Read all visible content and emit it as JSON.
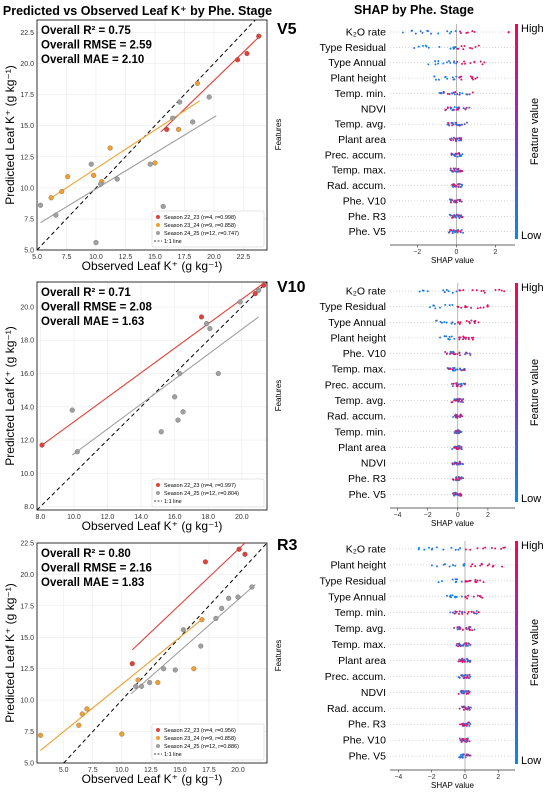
{
  "titles": {
    "left": "Predicted vs Observed Leaf K⁺ by Phe. Stage",
    "right": "SHAP by Phe. Stage"
  },
  "chart_data": [
    {
      "type": "scatter",
      "panel": "V5",
      "xlabel": "Observed Leaf K⁺ (g kg⁻¹)",
      "ylabel": "Predicted Leaf K⁺ (g kg⁻¹)",
      "xlim": [
        5.0,
        24.5
      ],
      "ylim": [
        5.0,
        23.5
      ],
      "xticks": [
        "5.0",
        "7.5",
        "10.0",
        "12.5",
        "15.0",
        "17.5",
        "20.0",
        "22.5"
      ],
      "xtick_values": [
        5,
        7.5,
        10,
        12.5,
        15,
        17.5,
        20,
        22.5
      ],
      "yticks": [
        "5.0",
        "7.5",
        "10.0",
        "12.5",
        "15.0",
        "17.5",
        "20.0",
        "22.5"
      ],
      "ytick_values": [
        5,
        7.5,
        10,
        12.5,
        15,
        17.5,
        20,
        22.5
      ],
      "stats": [
        "Overall R² = 0.75",
        "Overall RMSE = 2.59",
        "Overall MAE = 2.10"
      ],
      "series": [
        {
          "name": "Season 22_23 (n=4, r=0.998)",
          "color": "#e0413a",
          "x": [
            16.0,
            22.0,
            22.8,
            23.8
          ],
          "y": [
            14.7,
            20.3,
            20.8,
            22.2
          ],
          "fit": [
            [
              15.5,
              14.5
            ],
            [
              24.0,
              22.3
            ]
          ]
        },
        {
          "name": "Season 23_24 (n=9, r=0.858)",
          "color": "#f0a030",
          "x": [
            6.2,
            7.1,
            7.6,
            9.8,
            10.5,
            11.2,
            15.0,
            17.0,
            18.6
          ],
          "y": [
            9.2,
            9.7,
            10.9,
            11.0,
            10.5,
            13.2,
            12.0,
            14.7,
            18.4
          ],
          "fit": [
            [
              6.2,
              9.2
            ],
            [
              18.8,
              17.0
            ]
          ]
        },
        {
          "name": "Season 24_25 (n=12, r=0.747)",
          "color": "#a0a0a0",
          "x": [
            5.3,
            6.6,
            9.6,
            10.0,
            10.4,
            11.8,
            14.6,
            15.7,
            16.5,
            17.1,
            18.2,
            19.6
          ],
          "y": [
            8.6,
            7.8,
            11.9,
            5.6,
            10.3,
            10.7,
            11.9,
            8.5,
            15.6,
            16.9,
            15.3,
            17.3
          ],
          "fit": [
            [
              5.3,
              7.2
            ],
            [
              20.2,
              15.8
            ]
          ]
        }
      ],
      "legend_extra": "1:1 line"
    },
    {
      "type": "scatter",
      "panel": "V10",
      "xlabel": "Observed Leaf K⁺ (g kg⁻¹)",
      "ylabel": "Predicted Leaf K⁺ (g kg⁻¹)",
      "xlim": [
        7.8,
        21.5
      ],
      "ylim": [
        7.8,
        21.5
      ],
      "xticks": [
        "8.0",
        "10.0",
        "12.0",
        "14.0",
        "16.0",
        "18.0",
        "20.0"
      ],
      "xtick_values": [
        8,
        10,
        12,
        14,
        16,
        18,
        20
      ],
      "yticks": [
        "8.0",
        "10.0",
        "12.0",
        "14.0",
        "16.0",
        "18.0",
        "20.0"
      ],
      "ytick_values": [
        8,
        10,
        12,
        14,
        16,
        18,
        20
      ],
      "stats": [
        "Overall R² = 0.71",
        "Overall RMSE = 2.08",
        "Overall MAE = 1.63"
      ],
      "series": [
        {
          "name": "Season 22_23 (n=4, r=0.997)",
          "color": "#e0413a",
          "x": [
            8.1,
            17.6,
            20.8,
            21.3
          ],
          "y": [
            11.7,
            19.4,
            20.8,
            21.3
          ],
          "fit": [
            [
              8.1,
              11.7
            ],
            [
              21.4,
              21.5
            ]
          ]
        },
        {
          "name": "Season 24_25 (n=12, r=0.804)",
          "color": "#a0a0a0",
          "x": [
            9.9,
            10.2,
            15.2,
            16.0,
            16.2,
            16.3,
            16.5,
            17.9,
            18.1,
            18.6,
            19.9,
            21.0
          ],
          "y": [
            13.8,
            11.3,
            12.5,
            14.6,
            13.2,
            16.0,
            13.7,
            19.0,
            18.7,
            16.0,
            20.3,
            21.0
          ],
          "fit": [
            [
              9.9,
              11.1
            ],
            [
              21.0,
              19.4
            ]
          ]
        }
      ],
      "legend_extra": "1:1 line"
    },
    {
      "type": "scatter",
      "panel": "R3",
      "xlabel": "Observed Leaf K⁺ (g kg⁻¹)",
      "ylabel": "Predicted Leaf K⁺ (g kg⁻¹)",
      "xlim": [
        2.7,
        22.5
      ],
      "ylim": [
        5.0,
        22.5
      ],
      "xticks": [
        "5.0",
        "7.5",
        "10.0",
        "12.5",
        "15.0",
        "17.5",
        "20.0"
      ],
      "xtick_values": [
        5,
        7.5,
        10,
        12.5,
        15,
        17.5,
        20
      ],
      "yticks": [
        "5.0",
        "7.5",
        "10.0",
        "12.5",
        "15.0",
        "17.5",
        "20.0",
        "22.5"
      ],
      "ytick_values": [
        5,
        7.5,
        10,
        12.5,
        15,
        17.5,
        20,
        22.5
      ],
      "stats": [
        "Overall R² = 0.80",
        "Overall RMSE = 2.16",
        "Overall MAE = 1.83"
      ],
      "series": [
        {
          "name": "Season 22_23 (n=4, r=0.956)",
          "color": "#e0413a",
          "x": [
            10.9,
            17.2,
            20.1,
            20.6
          ],
          "y": [
            12.9,
            21.0,
            22.0,
            21.6
          ],
          "fit": [
            [
              10.9,
              14.0
            ],
            [
              20.6,
              22.5
            ]
          ]
        },
        {
          "name": "Season 23_24 (n=9, r=0.858)",
          "color": "#f0a030",
          "x": [
            3.0,
            6.3,
            6.6,
            7.0,
            10.0,
            11.4,
            13.1,
            16.2,
            16.9
          ],
          "y": [
            7.2,
            8.0,
            8.9,
            9.3,
            7.3,
            11.6,
            11.4,
            12.5,
            16.4
          ],
          "fit": [
            [
              3.0,
              6.0
            ],
            [
              17.0,
              16.5
            ]
          ]
        },
        {
          "name": "Season 24_25 (n=12, r=0.886)",
          "color": "#a0a0a0",
          "x": [
            11.2,
            11.7,
            12.4,
            13.6,
            14.6,
            15.3,
            16.8,
            18.1,
            18.6,
            19.2,
            20.0,
            21.2
          ],
          "y": [
            11.1,
            11.1,
            11.4,
            12.5,
            12.4,
            15.6,
            14.3,
            16.5,
            17.3,
            18.1,
            18.2,
            19.0
          ],
          "fit": [
            [
              10.8,
              10.5
            ],
            [
              21.5,
              19.2
            ]
          ]
        }
      ],
      "legend_extra": "1:1 line"
    }
  ],
  "shap": [
    {
      "panel": "V5",
      "features": [
        "K₂O rate",
        "Type Residual",
        "Type Annual",
        "Plant height",
        "Temp. min.",
        "NDVI",
        "Temp. avg.",
        "Plant area",
        "Prec. accum.",
        "Temp. max.",
        "Rad. accum.",
        "Phe. V10",
        "Phe. R3",
        "Phe. V5"
      ],
      "xlim": [
        -3.4,
        3.0
      ],
      "xticks": [
        "−2",
        "0",
        "2"
      ],
      "xtick_values": [
        -2,
        0,
        2
      ],
      "xlabel": "SHAP value",
      "ylabel": "Features"
    },
    {
      "panel": "V10",
      "features": [
        "K₂O rate",
        "Type Residual",
        "Type Annual",
        "Plant height",
        "Phe. V10",
        "Temp. max.",
        "Prec. accum.",
        "Temp. avg.",
        "Rad. accum.",
        "Temp. min.",
        "Plant area",
        "NDVI",
        "Phe. R3",
        "Phe. V5"
      ],
      "xlim": [
        -4.5,
        3.8
      ],
      "xticks": [
        "−4",
        "−2",
        "0",
        "2"
      ],
      "xtick_values": [
        -4,
        -2,
        0,
        2
      ],
      "xlabel": "SHAP value",
      "ylabel": "Features"
    },
    {
      "panel": "R3",
      "features": [
        "K₂O rate",
        "Plant height",
        "Type Residual",
        "Type Annual",
        "Temp. min.",
        "Temp. avg.",
        "Temp. max.",
        "Plant area",
        "Prec. accum.",
        "NDVI",
        "Rad. accum.",
        "Phe. R3",
        "Phe. V10",
        "Phe. V5"
      ],
      "xlim": [
        -4.5,
        3.0
      ],
      "xticks": [
        "−4",
        "−2",
        "0",
        "2"
      ],
      "xtick_values": [
        -4,
        -2,
        0,
        2
      ],
      "xlabel": "SHAP value",
      "ylabel": "Features"
    }
  ],
  "colorbar": {
    "high": "High",
    "low": "Low",
    "label": "Feature value",
    "color_high": "#ff0052",
    "color_low": "#008bfb"
  }
}
